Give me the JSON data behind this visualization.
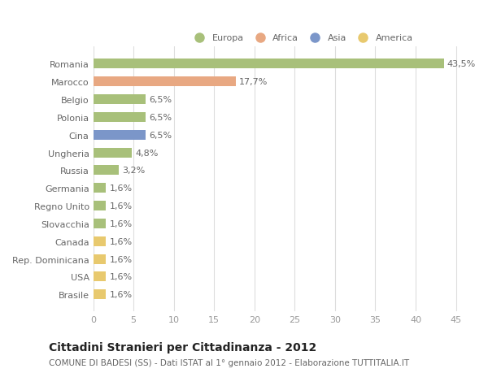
{
  "categories": [
    "Romania",
    "Marocco",
    "Belgio",
    "Polonia",
    "Cina",
    "Ungheria",
    "Russia",
    "Germania",
    "Regno Unito",
    "Slovacchia",
    "Canada",
    "Rep. Dominicana",
    "USA",
    "Brasile"
  ],
  "values": [
    43.5,
    17.7,
    6.5,
    6.5,
    6.5,
    4.8,
    3.2,
    1.6,
    1.6,
    1.6,
    1.6,
    1.6,
    1.6,
    1.6
  ],
  "labels": [
    "43,5%",
    "17,7%",
    "6,5%",
    "6,5%",
    "6,5%",
    "4,8%",
    "3,2%",
    "1,6%",
    "1,6%",
    "1,6%",
    "1,6%",
    "1,6%",
    "1,6%",
    "1,6%"
  ],
  "colors": [
    "#a8c07a",
    "#e8a882",
    "#a8c07a",
    "#a8c07a",
    "#7b96c9",
    "#a8c07a",
    "#a8c07a",
    "#a8c07a",
    "#a8c07a",
    "#a8c07a",
    "#e8c96e",
    "#e8c96e",
    "#e8c96e",
    "#e8c96e"
  ],
  "legend_labels": [
    "Europa",
    "Africa",
    "Asia",
    "America"
  ],
  "legend_colors": [
    "#a8c07a",
    "#e8a882",
    "#7b96c9",
    "#e8c96e"
  ],
  "xlim": [
    0,
    47
  ],
  "xticks": [
    0,
    5,
    10,
    15,
    20,
    25,
    30,
    35,
    40,
    45
  ],
  "title_bold": "Cittadini Stranieri per Cittadinanza - 2012",
  "subtitle": "COMUNE DI BADESI (SS) - Dati ISTAT al 1° gennaio 2012 - Elaborazione TUTTITALIA.IT",
  "background_color": "#ffffff",
  "grid_color": "#dddddd",
  "bar_height": 0.55,
  "label_fontsize": 8.0,
  "tick_fontsize": 8.0,
  "title_fontsize": 10.0,
  "subtitle_fontsize": 7.5
}
